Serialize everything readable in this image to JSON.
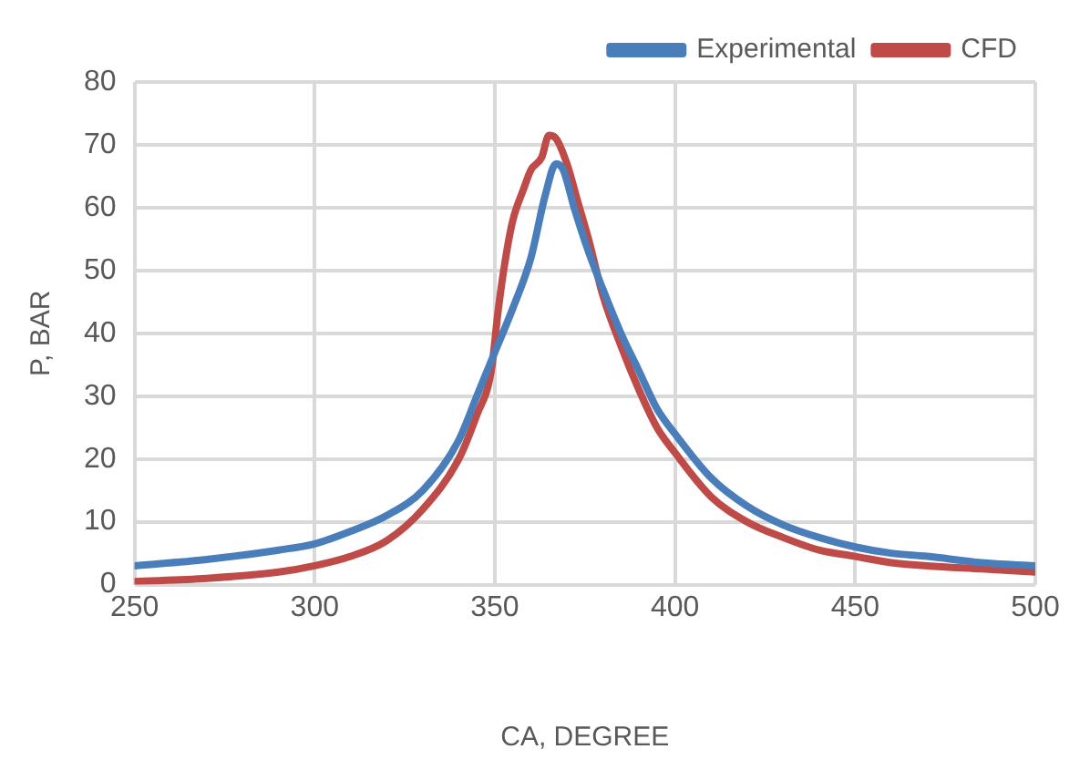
{
  "chart_data": {
    "type": "line",
    "xlabel": "CA, DEGREE",
    "ylabel": "P, BAR",
    "xlim": [
      250,
      500
    ],
    "xticks": [
      250,
      300,
      350,
      400,
      450,
      500
    ],
    "ylim": [
      0,
      80
    ],
    "yticks": [
      0,
      10,
      20,
      30,
      40,
      50,
      60,
      70,
      80
    ],
    "grid": true,
    "legend": "top right",
    "marker": "none",
    "line_style": "solid",
    "series": [
      {
        "name": "Experimental",
        "color": "#4a7ebb",
        "x": [
          250,
          270,
          290,
          300,
          310,
          320,
          330,
          340,
          345,
          350,
          355,
          360,
          364,
          367,
          369,
          372,
          376,
          380,
          385,
          390,
          395,
          400,
          410,
          420,
          430,
          440,
          450,
          460,
          470,
          485,
          500
        ],
        "values": [
          3,
          4,
          5.5,
          6.5,
          8.5,
          11,
          15,
          23,
          30,
          37,
          44,
          52,
          62,
          67,
          66,
          60,
          53,
          47,
          40,
          34,
          28,
          24,
          17,
          12.5,
          9.5,
          7.5,
          6,
          5,
          4.5,
          3.5,
          3
        ]
      },
      {
        "name": "CFD",
        "color": "#be4b48",
        "x": [
          250,
          270,
          290,
          300,
          310,
          320,
          330,
          340,
          345,
          349,
          351,
          353,
          355,
          358,
          360,
          363,
          365,
          367,
          370,
          373,
          376,
          380,
          385,
          390,
          395,
          400,
          410,
          420,
          430,
          440,
          450,
          460,
          470,
          485,
          500
        ],
        "values": [
          0.5,
          1,
          2,
          3,
          4.5,
          7,
          12,
          20,
          27,
          34,
          44,
          52,
          58,
          63,
          66,
          68,
          71.5,
          71,
          67,
          61,
          55,
          46,
          38,
          31,
          25,
          21,
          14,
          10,
          7.5,
          5.5,
          4.5,
          3.5,
          3,
          2.5,
          2
        ]
      }
    ]
  }
}
